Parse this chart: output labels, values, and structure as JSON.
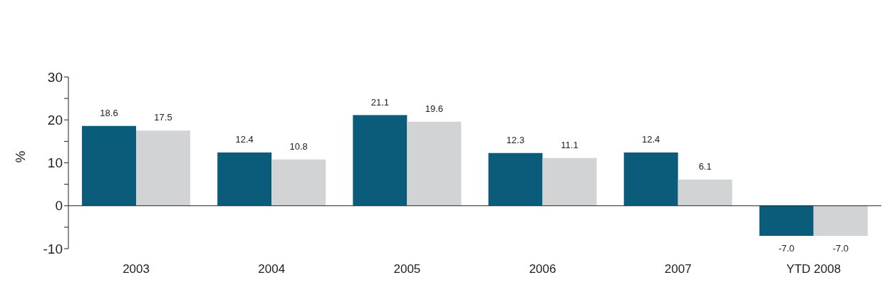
{
  "chart_data": {
    "type": "bar",
    "ylabel": "%",
    "categories": [
      "2003",
      "2004",
      "2005",
      "2006",
      "2007",
      "YTD 2008"
    ],
    "series": [
      {
        "color": "#0b5c7b",
        "values": [
          18.6,
          12.4,
          21.1,
          12.3,
          12.4,
          -7.0
        ],
        "value_labels": [
          "18.6",
          "12.4",
          "21.1",
          "12.3",
          "12.4",
          "-7.0"
        ]
      },
      {
        "color": "#d1d3d4",
        "values": [
          17.5,
          10.8,
          19.6,
          11.1,
          6.1,
          -7.0
        ],
        "value_labels": [
          "17.5",
          "10.8",
          "19.6",
          "11.1",
          "6.1",
          "-7.0"
        ]
      }
    ],
    "ylim": [
      -10,
      30
    ],
    "yticks": [
      -10,
      {
        "value": -5,
        "label": null
      },
      0,
      {
        "value": 5,
        "label": null
      },
      10,
      {
        "value": 15,
        "label": null
      },
      20,
      {
        "value": 25,
        "label": null
      },
      30
    ],
    "legend": false
  }
}
